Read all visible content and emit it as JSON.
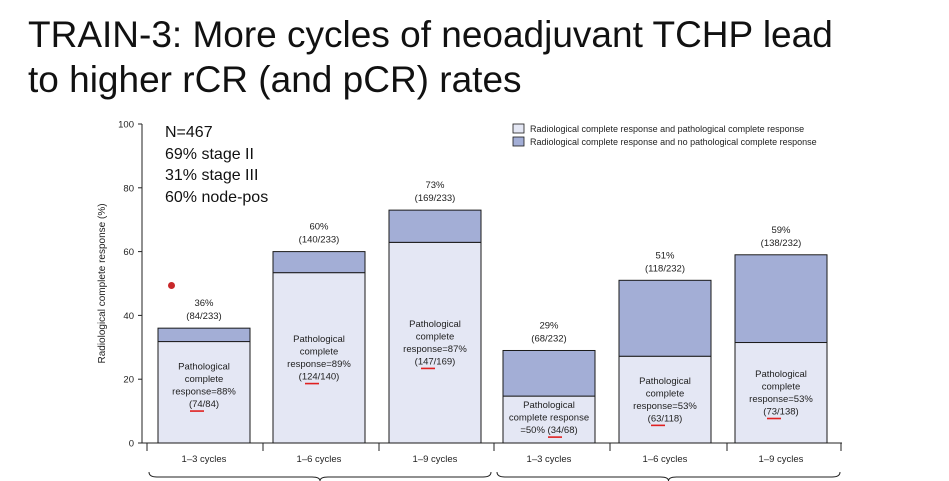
{
  "slide": {
    "title_line1": "TRAIN-3: More cycles of neoadjuvant TCHP lead",
    "title_line2": "to higher rCR (and pCR) rates"
  },
  "annotation": {
    "lines": [
      "N=467",
      "69% stage II",
      "31% stage III",
      "60% node-pos"
    ]
  },
  "chart_data": {
    "type": "bar",
    "stacked": true,
    "ylabel": "Radiological complete response (%)",
    "ylim": [
      0,
      100
    ],
    "yticks": [
      0,
      20,
      40,
      60,
      80,
      100
    ],
    "categories": [
      "1–3 cycles",
      "1–6 cycles",
      "1–9 cycles",
      "1–3 cycles",
      "1–6 cycles",
      "1–9 cycles"
    ],
    "legend": {
      "placement": "top-right",
      "entries": [
        "Radiological complete response and pathological complete response",
        "Radiological complete response and no pathological complete response"
      ]
    },
    "series": [
      {
        "name": "Radiological complete response and pathological complete response",
        "color": "#e4e7f4",
        "values": [
          31.8,
          53.4,
          62.9,
          14.7,
          27.2,
          31.5
        ]
      },
      {
        "name": "Radiological complete response and no pathological complete response",
        "color": "#a3aed6",
        "values": [
          4.2,
          6.6,
          10.1,
          14.3,
          23.8,
          27.5
        ]
      }
    ],
    "total_labels": [
      [
        "36%",
        "(84/233)"
      ],
      [
        "60%",
        "(140/233)"
      ],
      [
        "73%",
        "(169/233)"
      ],
      [
        "29%",
        "(68/232)"
      ],
      [
        "51%",
        "(118/232)"
      ],
      [
        "59%",
        "(138/232)"
      ]
    ],
    "inner_labels": [
      [
        "Pathological",
        "complete",
        "response=88%",
        "(74/84)"
      ],
      [
        "Pathological",
        "complete",
        "response=89%",
        "(124/140)"
      ],
      [
        "Pathological",
        "complete",
        "response=87%",
        "(147/169)"
      ],
      [
        "Pathological",
        "complete response",
        "=50% (34/68)"
      ],
      [
        "Pathological",
        "complete",
        "response=53%",
        "(63/118)"
      ],
      [
        "Pathological",
        "complete",
        "response=53%",
        "(73/138)"
      ]
    ],
    "highlight_color": "#e02020"
  }
}
